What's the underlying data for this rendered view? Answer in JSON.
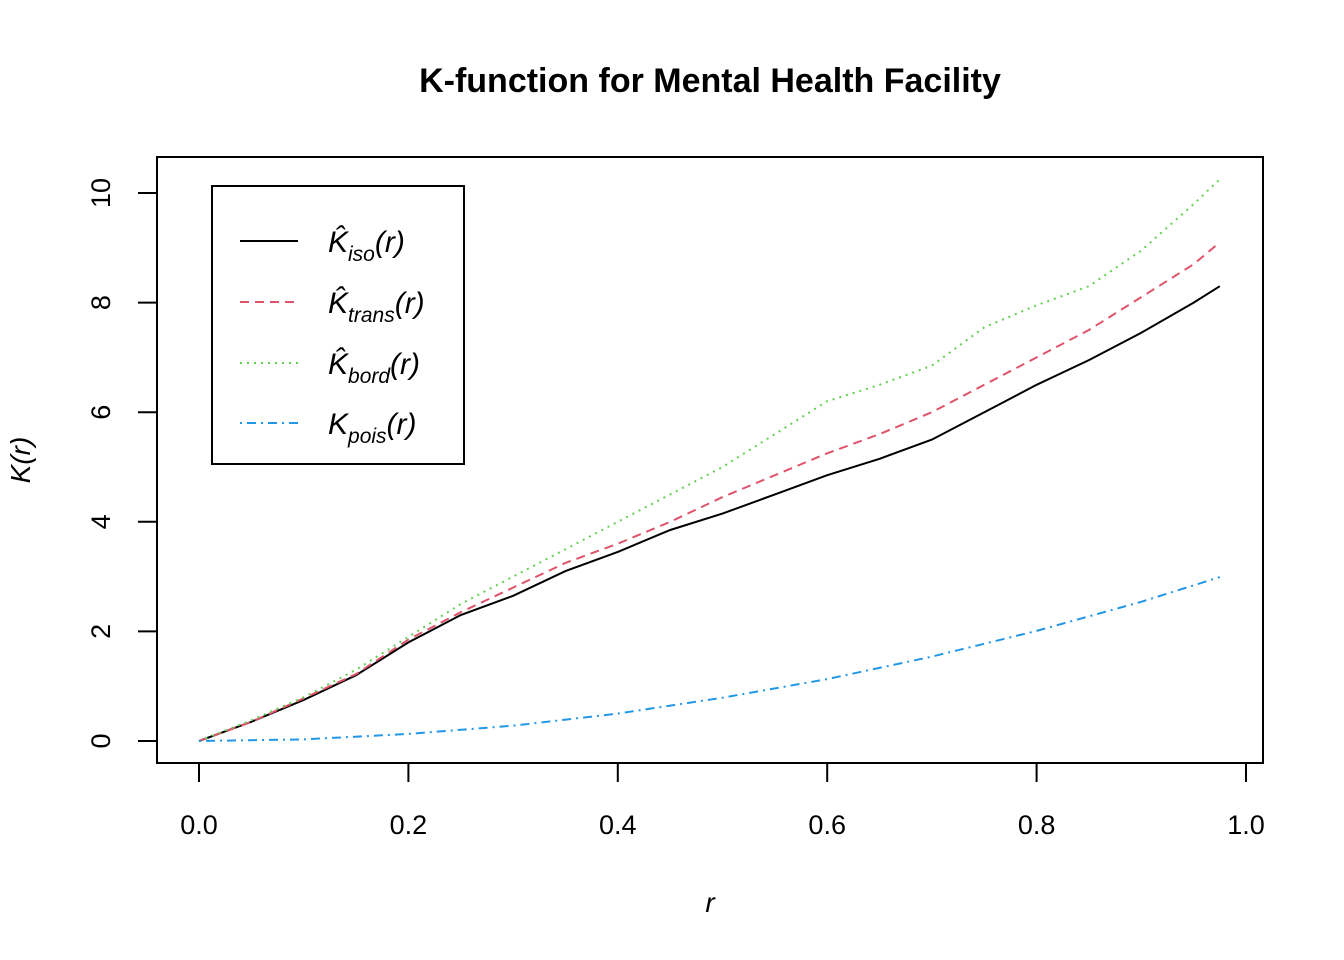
{
  "chart_data": {
    "type": "line",
    "title": "K-function for Mental Health Facility",
    "xlabel": "r",
    "ylabel": "K(r)",
    "xlim": [
      0.0,
      1.0
    ],
    "ylim": [
      0,
      10
    ],
    "x_ticks": [
      "0.0",
      "0.2",
      "0.4",
      "0.6",
      "0.8",
      "1.0"
    ],
    "y_ticks": [
      "0",
      "2",
      "4",
      "6",
      "8",
      "10"
    ],
    "grid": false,
    "legend_position": "top-left",
    "series": [
      {
        "name": "K̂iso(r)",
        "legend": {
          "base": "K̂",
          "sub": "iso",
          "suffix": "(r)"
        },
        "color": "#000000",
        "line_style": "solid",
        "x": [
          0,
          0.05,
          0.1,
          0.15,
          0.2,
          0.25,
          0.3,
          0.35,
          0.4,
          0.45,
          0.5,
          0.55,
          0.6,
          0.65,
          0.7,
          0.75,
          0.8,
          0.85,
          0.9,
          0.95,
          0.975
        ],
        "y": [
          0,
          0.35,
          0.75,
          1.2,
          1.8,
          2.3,
          2.65,
          3.1,
          3.45,
          3.85,
          4.15,
          4.5,
          4.85,
          5.15,
          5.5,
          6.0,
          6.5,
          6.95,
          7.45,
          8.0,
          8.3
        ]
      },
      {
        "name": "K̂trans(r)",
        "legend": {
          "base": "K̂",
          "sub": "trans",
          "suffix": "(r)"
        },
        "color": "#df536b",
        "line_style": "dashed",
        "x": [
          0,
          0.05,
          0.1,
          0.15,
          0.2,
          0.25,
          0.3,
          0.35,
          0.4,
          0.45,
          0.5,
          0.55,
          0.6,
          0.65,
          0.7,
          0.75,
          0.8,
          0.85,
          0.9,
          0.95,
          0.975
        ],
        "y": [
          0,
          0.35,
          0.78,
          1.22,
          1.85,
          2.35,
          2.8,
          3.25,
          3.6,
          4.0,
          4.45,
          4.85,
          5.25,
          5.6,
          6.0,
          6.5,
          7.0,
          7.5,
          8.1,
          8.7,
          9.1
        ]
      },
      {
        "name": "K̂bord(r)",
        "legend": {
          "base": "K̂",
          "sub": "bord",
          "suffix": "(r)"
        },
        "color": "#61d04f",
        "line_style": "dotted",
        "x": [
          0,
          0.05,
          0.1,
          0.15,
          0.2,
          0.25,
          0.3,
          0.35,
          0.4,
          0.45,
          0.5,
          0.55,
          0.6,
          0.65,
          0.7,
          0.75,
          0.8,
          0.85,
          0.9,
          0.95,
          0.975
        ],
        "y": [
          0,
          0.38,
          0.8,
          1.3,
          1.9,
          2.5,
          3.0,
          3.5,
          4.0,
          4.5,
          5.0,
          5.6,
          6.2,
          6.5,
          6.85,
          7.55,
          7.95,
          8.3,
          8.95,
          9.8,
          10.25
        ]
      },
      {
        "name": "Kpois(r)",
        "legend": {
          "base": "K",
          "sub": "pois",
          "suffix": "(r)"
        },
        "color": "#2297e6",
        "line_style": "dotdash",
        "function": "pi*r^2",
        "x": [
          0,
          0.1,
          0.2,
          0.3,
          0.4,
          0.5,
          0.6,
          0.7,
          0.8,
          0.9,
          0.975
        ],
        "y": [
          0,
          0.03,
          0.13,
          0.28,
          0.5,
          0.79,
          1.13,
          1.54,
          2.01,
          2.54,
          2.99
        ]
      }
    ]
  }
}
